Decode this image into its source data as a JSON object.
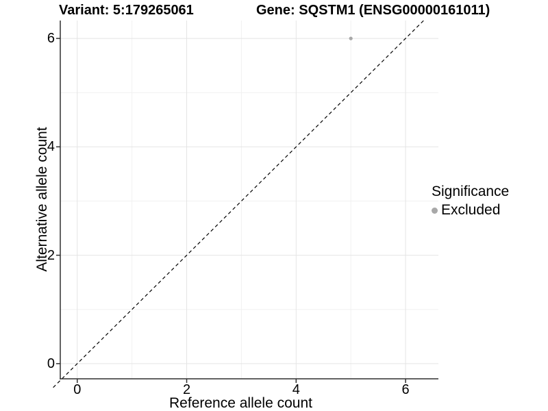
{
  "titles": {
    "variant": "Variant: 5:179265061",
    "gene": "Gene: SQSTM1 (ENSG00000161011)"
  },
  "axes": {
    "x": {
      "label": "Reference allele count",
      "tick_labels": [
        "0",
        "2",
        "4",
        "6"
      ]
    },
    "y": {
      "label": "Alternative allele count",
      "tick_labels": [
        "0",
        "2",
        "4",
        "6"
      ]
    }
  },
  "legend": {
    "title": "Significance",
    "items": [
      {
        "label": "Excluded",
        "color": "#a8a8a8"
      }
    ]
  },
  "chart_data": {
    "type": "scatter",
    "title": "Variant: 5:179265061    Gene: SQSTM1 (ENSG00000161011)",
    "xlabel": "Reference allele count",
    "ylabel": "Alternative allele count",
    "xlim": [
      -0.31,
      6.6
    ],
    "ylim": [
      -0.28,
      6.33
    ],
    "xticks": [
      0,
      2,
      4,
      6
    ],
    "yticks": [
      0,
      2,
      4,
      6
    ],
    "x_minor_ticks": [
      1,
      3,
      5
    ],
    "y_minor_ticks": [
      1,
      3,
      5
    ],
    "grid": true,
    "legend_position": "right",
    "series": [
      {
        "name": "Excluded",
        "color": "#a8a8a8",
        "points": [
          {
            "x": 5,
            "y": 6
          }
        ]
      }
    ],
    "reference_line": {
      "type": "identity",
      "slope": 1,
      "intercept": 0,
      "style": "dashed",
      "color": "#000000"
    }
  },
  "colors": {
    "background": "#ffffff",
    "grid_major": "#e4e4e4",
    "grid_minor": "#f1f1f1",
    "axis_line": "#2f2f2f",
    "point": "#a8a8a8",
    "text": "#000000"
  }
}
